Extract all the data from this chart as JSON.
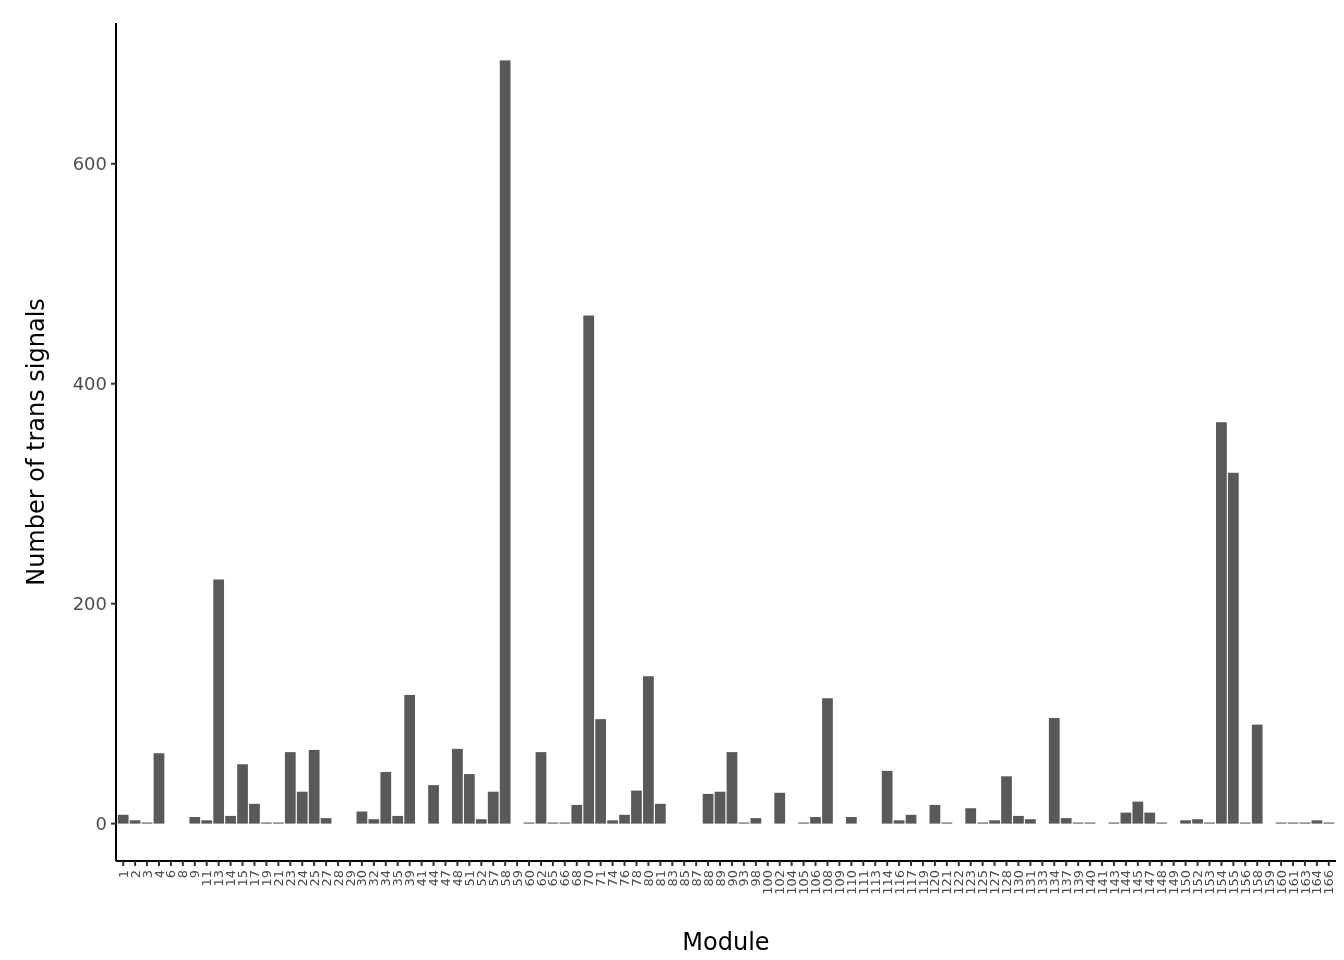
{
  "chart_data": {
    "type": "bar",
    "xlabel": "Module",
    "ylabel": "Number of trans signals",
    "color": "#595959",
    "categories": [
      "1",
      "2",
      "3",
      "4",
      "6",
      "8",
      "9",
      "11",
      "13",
      "14",
      "15",
      "17",
      "19",
      "21",
      "23",
      "24",
      "25",
      "27",
      "28",
      "29",
      "30",
      "32",
      "34",
      "35",
      "39",
      "41",
      "44",
      "47",
      "48",
      "51",
      "52",
      "57",
      "58",
      "59",
      "60",
      "62",
      "65",
      "66",
      "68",
      "70",
      "71",
      "74",
      "76",
      "78",
      "80",
      "81",
      "83",
      "85",
      "87",
      "88",
      "89",
      "90",
      "93",
      "98",
      "100",
      "102",
      "104",
      "105",
      "106",
      "108",
      "109",
      "110",
      "111",
      "113",
      "114",
      "116",
      "117",
      "119",
      "120",
      "121",
      "122",
      "123",
      "125",
      "127",
      "128",
      "130",
      "131",
      "133",
      "134",
      "137",
      "139",
      "140",
      "141",
      "143",
      "144",
      "145",
      "147",
      "148",
      "149",
      "150",
      "152",
      "153",
      "154",
      "155",
      "156",
      "158",
      "159",
      "160",
      "161",
      "163",
      "164",
      "166"
    ],
    "values": [
      8,
      3,
      1,
      64,
      0,
      0,
      6,
      3,
      222,
      7,
      54,
      18,
      1,
      1,
      65,
      29,
      67,
      5,
      0,
      0,
      11,
      4,
      47,
      7,
      117,
      0,
      35,
      0,
      68,
      45,
      4,
      29,
      694,
      0,
      1,
      65,
      1,
      1,
      17,
      462,
      95,
      3,
      8,
      30,
      134,
      18,
      0,
      0,
      0,
      27,
      29,
      65,
      1,
      5,
      0,
      28,
      0,
      1,
      6,
      114,
      0,
      6,
      0,
      0,
      48,
      3,
      8,
      0,
      17,
      1,
      0,
      14,
      1,
      3,
      43,
      7,
      4,
      0,
      96,
      5,
      1,
      1,
      0,
      1,
      10,
      20,
      10,
      1,
      0,
      3,
      4,
      1,
      365,
      319,
      1,
      90,
      0,
      1,
      1,
      1,
      3,
      1
    ],
    "ylim": [
      -34,
      728
    ],
    "yticks": [
      0,
      200,
      400,
      600
    ],
    "grid": false
  }
}
